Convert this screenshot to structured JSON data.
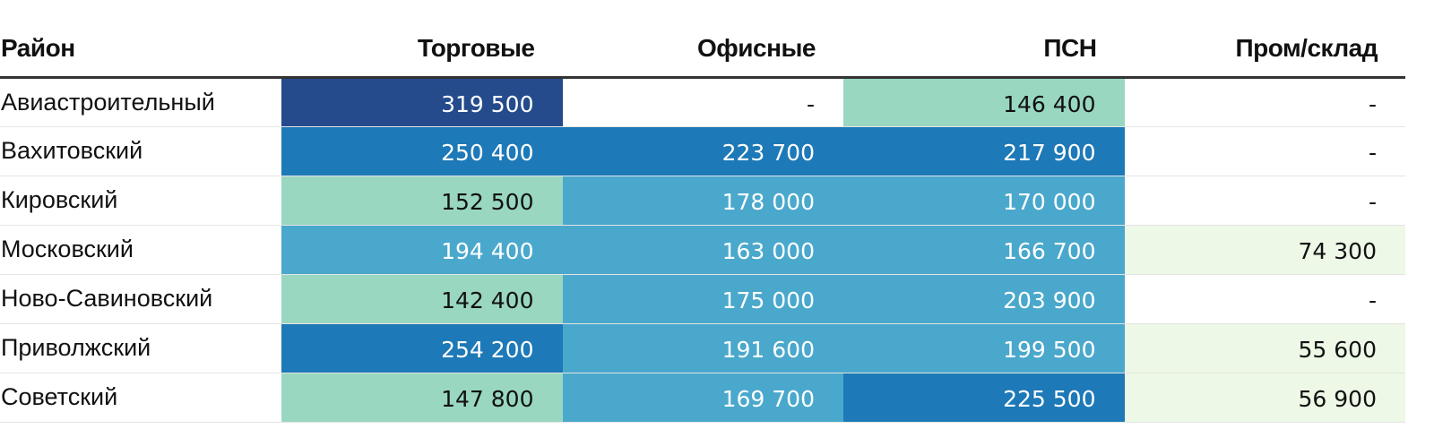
{
  "chart_data": {
    "type": "table",
    "columns": [
      "Район",
      "Торговые",
      "Офисные",
      "ПСН",
      "Пром/склад"
    ],
    "rows": [
      {
        "name": "Авиастроительный",
        "values": [
          319500,
          null,
          146400,
          null
        ]
      },
      {
        "name": "Вахитовский",
        "values": [
          250400,
          223700,
          217900,
          null
        ]
      },
      {
        "name": "Кировский",
        "values": [
          152500,
          178000,
          170000,
          null
        ]
      },
      {
        "name": "Московский",
        "values": [
          194400,
          163000,
          166700,
          74300
        ]
      },
      {
        "name": "Ново-Савиновский",
        "values": [
          142400,
          175000,
          203900,
          null
        ]
      },
      {
        "name": "Приволжский",
        "values": [
          254200,
          191600,
          199500,
          55600
        ]
      },
      {
        "name": "Советский",
        "values": [
          147800,
          169700,
          225500,
          56900
        ]
      }
    ],
    "missing_label": "-",
    "color_scale": {
      "stops": [
        {
          "min": 0,
          "color": "#edf8e6",
          "text": "#111111"
        },
        {
          "min": 100000,
          "color": "#99d7c1",
          "text": "#111111"
        },
        {
          "min": 160000,
          "color": "#4aa8cc",
          "text": "#ffffff"
        },
        {
          "min": 210000,
          "color": "#1d79b7",
          "text": "#ffffff"
        },
        {
          "min": 300000,
          "color": "#254b8d",
          "text": "#ffffff"
        }
      ],
      "missing_color": "#ffffff",
      "missing_text": "#111111"
    }
  }
}
